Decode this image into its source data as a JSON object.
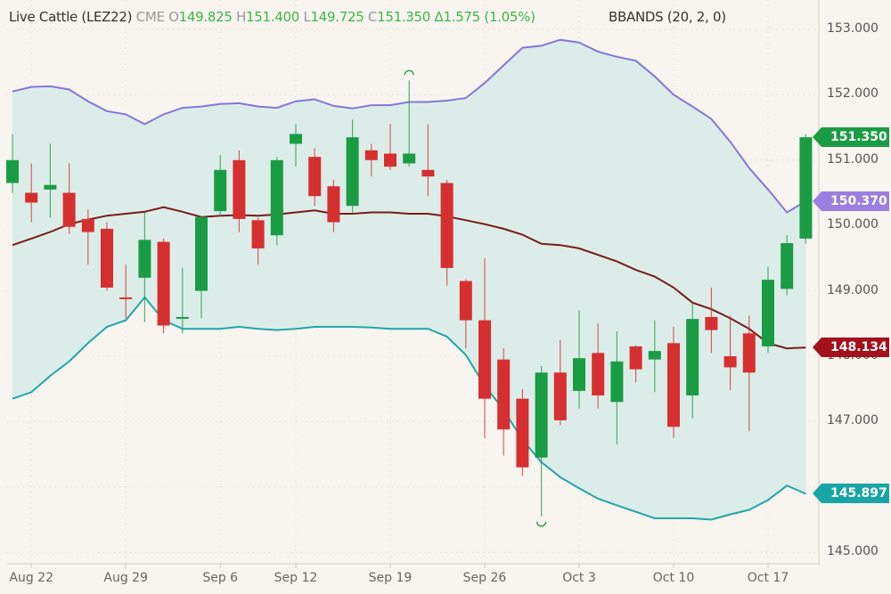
{
  "header": {
    "symbol": "Live Cattle (LEZ22)",
    "exchange": "CME",
    "open_key": "O",
    "open": "149.825",
    "high_key": "H",
    "high": "151.400",
    "low_key": "L",
    "low": "149.725",
    "close_key": "C",
    "close": "151.350",
    "change": "Δ1.575 (1.05%)",
    "indicator": "BBANDS (20, 2, 0)"
  },
  "colors": {
    "background": "#f8f4ef",
    "up": "#1a9c44",
    "down": "#d62f2f",
    "upper_band": "#8378d8",
    "middle_band": "#7a1a1a",
    "lower_band": "#22a6a6",
    "band_fill": "#dcede9"
  },
  "price_tags": [
    {
      "label": "151.350",
      "price": 151.35,
      "color": "#1a9c44"
    },
    {
      "label": "150.370",
      "price": 150.37,
      "color": "#9b7fe0"
    },
    {
      "label": "148.134",
      "price": 148.134,
      "color": "#a3111b"
    },
    {
      "label": "145.897",
      "price": 145.897,
      "color": "#1aa5a5"
    }
  ],
  "chart_data": {
    "type": "candlestick",
    "title": "Live Cattle (LEZ22) CME",
    "indicator": "BBANDS (20, 2, 0)",
    "ylim": [
      144.8,
      153.4
    ],
    "y_ticks": [
      "153.000",
      "152.000",
      "151.000",
      "150.000",
      "149.000",
      "148.000",
      "147.000",
      "145.000"
    ],
    "x_ticks": [
      {
        "label": "Aug 22",
        "index": 1
      },
      {
        "label": "Aug 29",
        "index": 6
      },
      {
        "label": "Sep 6",
        "index": 11
      },
      {
        "label": "Sep 12",
        "index": 15
      },
      {
        "label": "Sep 19",
        "index": 20
      },
      {
        "label": "Sep 26",
        "index": 25
      },
      {
        "label": "Oct 3",
        "index": 30
      },
      {
        "label": "Oct 10",
        "index": 35
      },
      {
        "label": "Oct 17",
        "index": 40
      }
    ],
    "grid": true,
    "candles": [
      {
        "o": 150.65,
        "h": 151.4,
        "l": 150.5,
        "c": 151.0
      },
      {
        "o": 150.5,
        "h": 150.95,
        "l": 150.05,
        "c": 150.35
      },
      {
        "o": 150.55,
        "h": 151.25,
        "l": 150.12,
        "c": 150.62
      },
      {
        "o": 150.5,
        "h": 150.95,
        "l": 149.87,
        "c": 149.98
      },
      {
        "o": 150.1,
        "h": 150.25,
        "l": 149.4,
        "c": 149.9
      },
      {
        "o": 149.95,
        "h": 150.05,
        "l": 149.0,
        "c": 149.05
      },
      {
        "o": 148.9,
        "h": 149.4,
        "l": 148.58,
        "c": 148.88
      },
      {
        "o": 149.2,
        "h": 150.2,
        "l": 148.52,
        "c": 149.78
      },
      {
        "o": 149.75,
        "h": 149.8,
        "l": 148.35,
        "c": 148.47
      },
      {
        "o": 148.58,
        "h": 149.35,
        "l": 148.35,
        "c": 148.6
      },
      {
        "o": 149.0,
        "h": 149.82,
        "l": 148.58,
        "c": 150.13
      },
      {
        "o": 150.22,
        "h": 151.08,
        "l": 150.14,
        "c": 150.85
      },
      {
        "o": 151.0,
        "h": 151.15,
        "l": 149.9,
        "c": 150.1
      },
      {
        "o": 150.08,
        "h": 150.12,
        "l": 149.4,
        "c": 149.65
      },
      {
        "o": 149.85,
        "h": 151.05,
        "l": 149.7,
        "c": 151.0
      },
      {
        "o": 151.25,
        "h": 151.55,
        "l": 150.9,
        "c": 151.4
      },
      {
        "o": 151.05,
        "h": 151.18,
        "l": 150.3,
        "c": 150.45
      },
      {
        "o": 150.6,
        "h": 150.7,
        "l": 149.9,
        "c": 150.05
      },
      {
        "o": 150.3,
        "h": 151.62,
        "l": 150.2,
        "c": 151.35
      },
      {
        "o": 151.15,
        "h": 151.25,
        "l": 150.75,
        "c": 151.0
      },
      {
        "o": 151.1,
        "h": 151.55,
        "l": 150.85,
        "c": 150.9
      },
      {
        "o": 150.95,
        "h": 152.22,
        "l": 150.9,
        "c": 151.1
      },
      {
        "o": 150.85,
        "h": 151.55,
        "l": 150.45,
        "c": 150.75
      },
      {
        "o": 150.65,
        "h": 150.7,
        "l": 149.08,
        "c": 149.35
      },
      {
        "o": 149.15,
        "h": 149.18,
        "l": 148.12,
        "c": 148.55
      },
      {
        "o": 148.55,
        "h": 149.5,
        "l": 146.75,
        "c": 147.35
      },
      {
        "o": 147.95,
        "h": 148.12,
        "l": 146.48,
        "c": 146.88
      },
      {
        "o": 147.35,
        "h": 147.5,
        "l": 146.17,
        "c": 146.3
      },
      {
        "o": 146.45,
        "h": 147.85,
        "l": 145.55,
        "c": 147.75
      },
      {
        "o": 147.75,
        "h": 148.25,
        "l": 146.95,
        "c": 147.02
      },
      {
        "o": 147.47,
        "h": 148.7,
        "l": 147.2,
        "c": 147.97
      },
      {
        "o": 148.05,
        "h": 148.5,
        "l": 147.2,
        "c": 147.4
      },
      {
        "o": 147.3,
        "h": 148.38,
        "l": 146.65,
        "c": 147.92
      },
      {
        "o": 148.15,
        "h": 148.17,
        "l": 147.6,
        "c": 147.8
      },
      {
        "o": 147.95,
        "h": 148.55,
        "l": 147.45,
        "c": 148.08
      },
      {
        "o": 148.2,
        "h": 148.45,
        "l": 146.75,
        "c": 146.92
      },
      {
        "o": 147.4,
        "h": 148.8,
        "l": 147.05,
        "c": 148.57
      },
      {
        "o": 148.6,
        "h": 149.05,
        "l": 148.05,
        "c": 148.4
      },
      {
        "o": 148.0,
        "h": 148.62,
        "l": 147.48,
        "c": 147.83
      },
      {
        "o": 148.35,
        "h": 148.62,
        "l": 146.85,
        "c": 147.75
      },
      {
        "o": 148.15,
        "h": 149.37,
        "l": 148.05,
        "c": 149.17
      },
      {
        "o": 149.03,
        "h": 149.85,
        "l": 148.93,
        "c": 149.73
      },
      {
        "o": 149.8,
        "h": 151.4,
        "l": 149.72,
        "c": 151.35
      }
    ],
    "upper_band": [
      152.05,
      152.12,
      152.13,
      152.08,
      151.9,
      151.75,
      151.7,
      151.55,
      151.7,
      151.8,
      151.82,
      151.86,
      151.87,
      151.82,
      151.8,
      151.9,
      151.93,
      151.83,
      151.79,
      151.84,
      151.84,
      151.89,
      151.89,
      151.91,
      151.95,
      152.18,
      152.45,
      152.72,
      152.75,
      152.84,
      152.8,
      152.66,
      152.58,
      152.52,
      152.28,
      152.0,
      151.82,
      151.63,
      151.28,
      150.88,
      150.55,
      150.2,
      150.37
    ],
    "middle_band": [
      149.7,
      149.8,
      149.9,
      150.02,
      150.09,
      150.15,
      150.18,
      150.21,
      150.28,
      150.21,
      150.13,
      150.15,
      150.16,
      150.15,
      150.17,
      150.2,
      150.23,
      150.18,
      150.18,
      150.2,
      150.2,
      150.18,
      150.18,
      150.14,
      150.08,
      150.02,
      149.95,
      149.86,
      149.72,
      149.7,
      149.65,
      149.55,
      149.45,
      149.32,
      149.22,
      149.05,
      148.82,
      148.72,
      148.58,
      148.42,
      148.2,
      148.12,
      148.134
    ],
    "lower_band": [
      147.35,
      147.45,
      147.7,
      147.92,
      148.2,
      148.45,
      148.55,
      148.9,
      148.55,
      148.42,
      148.42,
      148.42,
      148.45,
      148.42,
      148.4,
      148.42,
      148.45,
      148.45,
      148.45,
      148.44,
      148.42,
      148.42,
      148.42,
      148.3,
      148.02,
      147.55,
      147.18,
      146.72,
      146.38,
      146.15,
      145.98,
      145.82,
      145.72,
      145.62,
      145.52,
      145.52,
      145.52,
      145.5,
      145.58,
      145.65,
      145.8,
      146.02,
      145.897
    ]
  }
}
